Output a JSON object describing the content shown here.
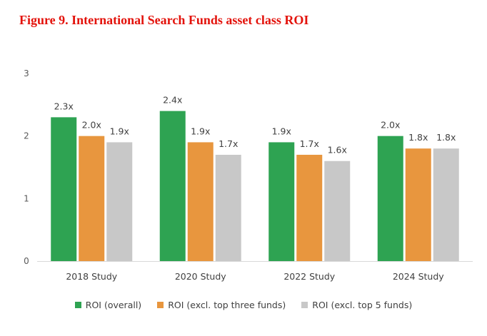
{
  "title": "Figure 9. International Search Funds asset class ROI",
  "colors": {
    "title": "#e3120b",
    "axis": "#d9d9d9"
  },
  "chart_data": {
    "type": "bar",
    "title": "Figure 9. International Search Funds asset class ROI",
    "xlabel": "",
    "ylabel": "",
    "ylim": [
      0,
      3
    ],
    "yticks": [
      0,
      1,
      2,
      3
    ],
    "grid": false,
    "legend_position": "bottom",
    "categories": [
      "2018 Study",
      "2020 Study",
      "2022 Study",
      "2024 Study"
    ],
    "series": [
      {
        "name": "ROI (overall)",
        "color": "#2ea352",
        "values": [
          2.3,
          2.4,
          1.9,
          2.0
        ],
        "labels": [
          "2.3x",
          "2.4x",
          "1.9x",
          "2.0x"
        ]
      },
      {
        "name": "ROI (excl. top three funds)",
        "color": "#e8963e",
        "values": [
          2.0,
          1.9,
          1.7,
          1.8
        ],
        "labels": [
          "2.0x",
          "1.9x",
          "1.7x",
          "1.8x"
        ]
      },
      {
        "name": "ROI (excl. top 5 funds)",
        "color": "#c8c8c8",
        "values": [
          1.9,
          1.7,
          1.6,
          1.8
        ],
        "labels": [
          "1.9x",
          "1.7x",
          "1.6x",
          "1.8x"
        ]
      }
    ]
  }
}
